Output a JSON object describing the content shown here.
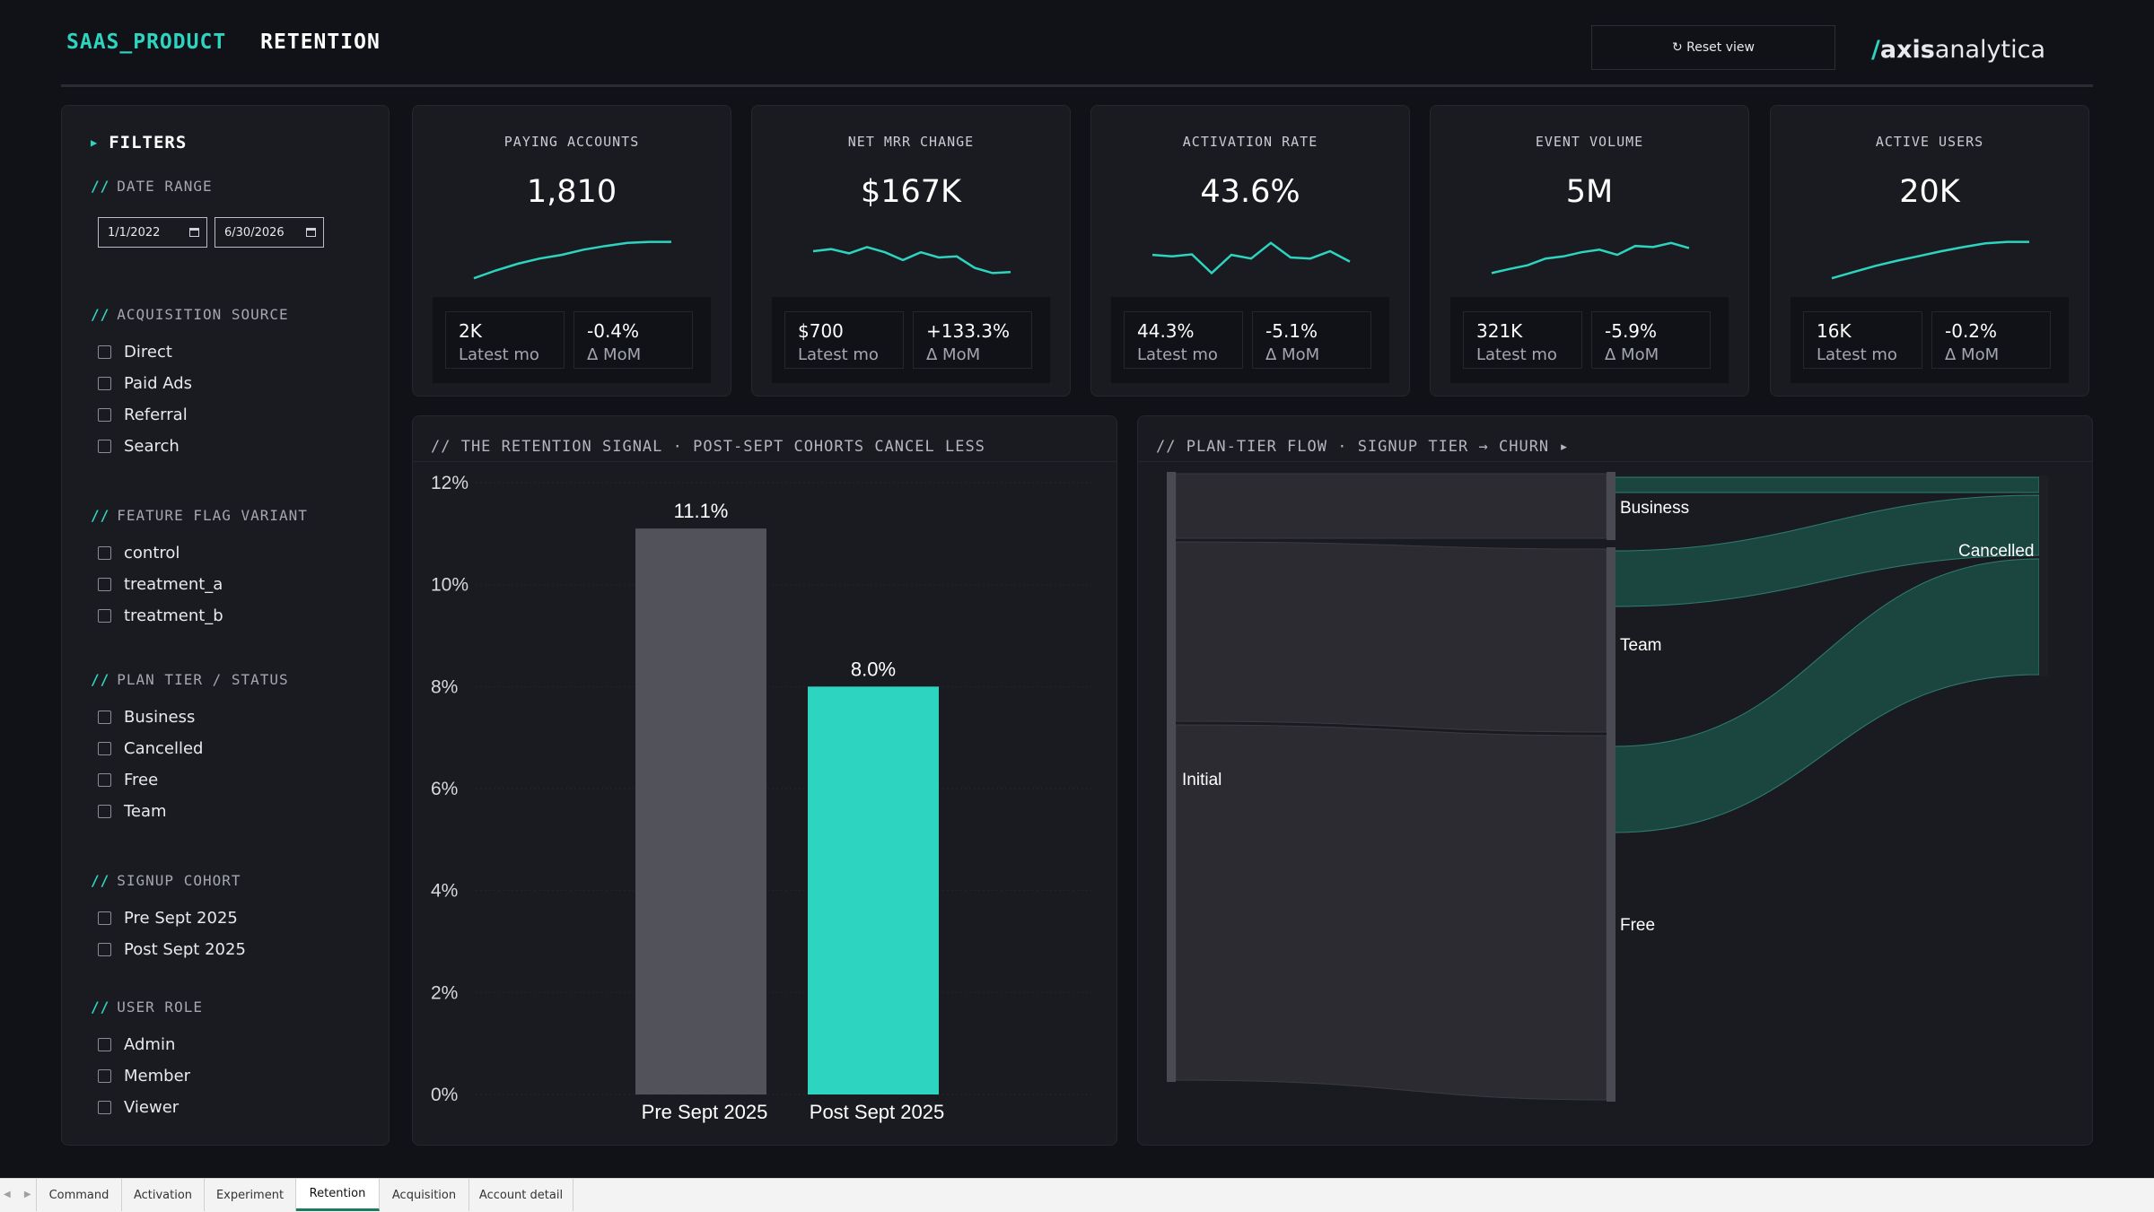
{
  "header": {
    "product": "SAAS_PRODUCT",
    "page": "RETENTION",
    "reset_label": "↻ Reset view",
    "logo_slash": "/",
    "logo_bold": "axis",
    "logo_rest": "analytica"
  },
  "filters": {
    "title": "FILTERS",
    "date_range": {
      "title": "DATE RANGE",
      "from": "1/1/2022",
      "to": "6/30/2026"
    },
    "acquisition_source": {
      "title": "ACQUISITION SOURCE",
      "options": [
        "Direct",
        "Paid Ads",
        "Referral",
        "Search"
      ]
    },
    "feature_flag_variant": {
      "title": "FEATURE FLAG VARIANT",
      "options": [
        "control",
        "treatment_a",
        "treatment_b"
      ]
    },
    "plan_tier_status": {
      "title": "PLAN TIER / STATUS",
      "options": [
        "Business",
        "Cancelled",
        "Free",
        "Team"
      ]
    },
    "signup_cohort": {
      "title": "SIGNUP COHORT",
      "options": [
        "Pre Sept 2025",
        "Post Sept 2025"
      ]
    },
    "user_role": {
      "title": "USER ROLE",
      "options": [
        "Admin",
        "Member",
        "Viewer"
      ]
    },
    "slash": "//"
  },
  "kpis": [
    {
      "title": "PAYING ACCOUNTS",
      "value": "1,810",
      "latest_value": "2K",
      "latest_label": "Latest mo",
      "mom_value": "-0.4%",
      "mom_label": "Δ MoM",
      "spark": [
        0.1,
        0.25,
        0.38,
        0.48,
        0.55,
        0.65,
        0.72,
        0.78,
        0.8,
        0.8
      ]
    },
    {
      "title": "NET MRR CHANGE",
      "value": "$167K",
      "latest_value": "$700",
      "latest_label": "Latest mo",
      "mom_value": "+133.3%",
      "mom_label": "Δ MoM",
      "spark": [
        0.62,
        0.66,
        0.58,
        0.7,
        0.6,
        0.45,
        0.6,
        0.5,
        0.52,
        0.3,
        0.2,
        0.22
      ]
    },
    {
      "title": "ACTIVATION RATE",
      "value": "43.6%",
      "latest_value": "44.3%",
      "latest_label": "Latest mo",
      "mom_value": "-5.1%",
      "mom_label": "Δ MoM",
      "spark": [
        0.55,
        0.52,
        0.56,
        0.2,
        0.55,
        0.48,
        0.78,
        0.5,
        0.48,
        0.62,
        0.42
      ]
    },
    {
      "title": "EVENT VOLUME",
      "value": "5M",
      "latest_value": "321K",
      "latest_label": "Latest mo",
      "mom_value": "-5.9%",
      "mom_label": "Δ MoM",
      "spark": [
        0.2,
        0.28,
        0.35,
        0.48,
        0.52,
        0.6,
        0.65,
        0.55,
        0.72,
        0.7,
        0.78,
        0.68
      ]
    },
    {
      "title": "ACTIVE USERS",
      "value": "20K",
      "latest_value": "16K",
      "latest_label": "Latest mo",
      "mom_value": "-0.2%",
      "mom_label": "Δ MoM",
      "spark": [
        0.1,
        0.22,
        0.34,
        0.44,
        0.53,
        0.62,
        0.7,
        0.77,
        0.8,
        0.8
      ]
    }
  ],
  "retention_chart": {
    "heading": "// THE RETENTION SIGNAL · POST-SEPT COHORTS CANCEL LESS"
  },
  "flow_chart": {
    "heading": "// PLAN-TIER FLOW · SIGNUP TIER → CHURN ▸",
    "nodes": [
      "Initial",
      "Business",
      "Team",
      "Free",
      "Cancelled"
    ]
  },
  "chart_data": [
    {
      "type": "bar",
      "categories": [
        "Pre Sept 2025",
        "Post Sept 2025"
      ],
      "values": [
        11.1,
        8.0
      ],
      "data_labels": [
        "11.1%",
        "8.0%"
      ],
      "ylim": [
        0,
        12
      ],
      "yticks": [
        "0%",
        "2%",
        "4%",
        "6%",
        "8%",
        "10%",
        "12%"
      ],
      "colors": [
        "#52525b",
        "#2dd4bf"
      ],
      "grid": true
    }
  ],
  "colors": {
    "accent": "#2dd4bf",
    "background": "#111217",
    "panel": "#1a1b21"
  },
  "tabs": [
    "Command",
    "Activation",
    "Experiment",
    "Retention",
    "Acquisition",
    "Account detail"
  ],
  "active_tab": "Retention",
  "tab_nav": "◀ ▶"
}
